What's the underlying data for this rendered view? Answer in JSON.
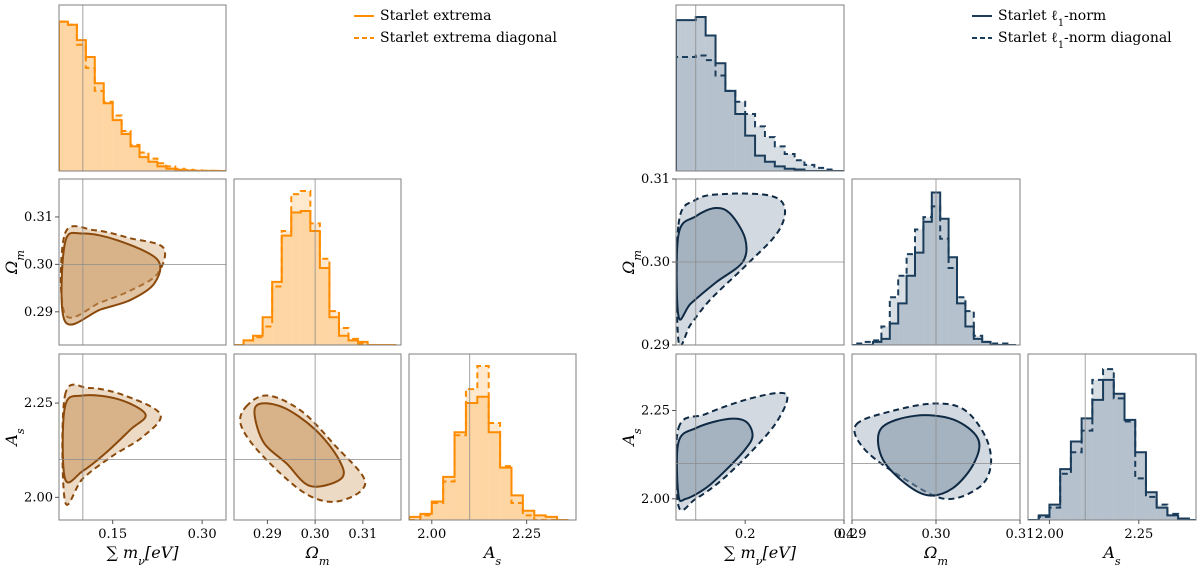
{
  "chart_data": [
    {
      "type": "corner",
      "colors": {
        "hist": "#ff8c00",
        "hist_fill": "#fdcf95",
        "contour": "#8b4a0c",
        "contour_fill": "#c8945a",
        "truth": "#8c8c8c"
      },
      "legend": {
        "placement": "top-right",
        "entries": [
          {
            "label": "Starlet extrema",
            "style": "solid"
          },
          {
            "label": "Starlet extrema diagonal",
            "style": "dashed"
          }
        ]
      },
      "parameters": [
        {
          "name": "sum_mnu",
          "label": "∑ m",
          "sub": "ν",
          "suffix": "[eV]",
          "range": [
            0.06,
            0.34
          ],
          "truth": 0.1,
          "ticks": [
            0.15,
            0.3
          ],
          "tick_labels": [
            "0.15",
            "0.30"
          ]
        },
        {
          "name": "Omega_m",
          "label": "Ω",
          "sub": "m",
          "suffix": "",
          "range": [
            0.283,
            0.318
          ],
          "truth": 0.3,
          "ticks": [
            0.29,
            0.3,
            0.31
          ],
          "tick_labels": [
            "0.29",
            "0.30",
            "0.31"
          ]
        },
        {
          "name": "A_s",
          "label": "A",
          "sub": "s",
          "suffix": "",
          "range": [
            1.94,
            2.38
          ],
          "truth": 2.1,
          "ticks": [
            2.0,
            2.25
          ],
          "tick_labels": [
            "2.00",
            "2.25"
          ]
        }
      ],
      "marginals": [
        {
          "edges": [
            0.06,
            0.075,
            0.09,
            0.105,
            0.12,
            0.135,
            0.15,
            0.165,
            0.18,
            0.195,
            0.21,
            0.225,
            0.24,
            0.255,
            0.27,
            0.285,
            0.3,
            0.315,
            0.33,
            0.345
          ],
          "solid": [
            0.97,
            0.95,
            0.85,
            0.74,
            0.57,
            0.44,
            0.33,
            0.24,
            0.16,
            0.09,
            0.06,
            0.03,
            0.015,
            0.008,
            0.004,
            0.002,
            0.001,
            0.0005,
            0.0
          ],
          "dashed": [
            0.97,
            0.95,
            0.82,
            0.67,
            0.52,
            0.45,
            0.36,
            0.26,
            0.17,
            0.12,
            0.08,
            0.05,
            0.03,
            0.015,
            0.008,
            0.004,
            0.002,
            0.001,
            0.0
          ]
        },
        {
          "edges": [
            0.283,
            0.285,
            0.287,
            0.289,
            0.291,
            0.293,
            0.295,
            0.297,
            0.299,
            0.301,
            0.303,
            0.305,
            0.307,
            0.309,
            0.311,
            0.313,
            0.315,
            0.317
          ],
          "solid": [
            0.0,
            0.03,
            0.06,
            0.18,
            0.41,
            0.71,
            0.86,
            0.87,
            0.74,
            0.5,
            0.18,
            0.06,
            0.03,
            0.02,
            0.0,
            0.0,
            0.0
          ],
          "dashed": [
            0.0,
            0.03,
            0.05,
            0.12,
            0.38,
            0.74,
            0.98,
            1.0,
            0.79,
            0.56,
            0.22,
            0.11,
            0.04,
            0.01,
            0.0,
            0.0,
            0.0
          ]
        },
        {
          "edges": [
            1.94,
            1.97,
            2.0,
            2.03,
            2.06,
            2.09,
            2.12,
            2.15,
            2.18,
            2.21,
            2.24,
            2.27,
            2.3,
            2.33,
            2.36
          ],
          "solid": [
            0.02,
            0.04,
            0.12,
            0.28,
            0.57,
            0.76,
            0.8,
            0.57,
            0.34,
            0.16,
            0.06,
            0.03,
            0.02,
            0.0
          ],
          "dashed": [
            0.0,
            0.03,
            0.11,
            0.25,
            0.55,
            0.85,
            1.0,
            0.63,
            0.35,
            0.11,
            0.03,
            0.0,
            0.0,
            0.0
          ]
        }
      ],
      "contours": [
        {
          "x": "sum_mnu",
          "y": "Omega_m",
          "solid": [
            [
              0.07,
              0.3045
            ],
            [
              0.1,
              0.3065
            ],
            [
              0.16,
              0.305
            ],
            [
              0.225,
              0.301
            ],
            [
              0.22,
              0.296
            ],
            [
              0.18,
              0.2925
            ],
            [
              0.13,
              0.2905
            ],
            [
              0.07,
              0.288
            ]
          ],
          "dashed": [
            [
              0.07,
              0.3065
            ],
            [
              0.12,
              0.3072
            ],
            [
              0.18,
              0.3055
            ],
            [
              0.235,
              0.3035
            ],
            [
              0.225,
              0.298
            ],
            [
              0.18,
              0.2945
            ],
            [
              0.13,
              0.292
            ],
            [
              0.07,
              0.2895
            ]
          ]
        },
        {
          "x": "sum_mnu",
          "y": "A_s",
          "solid": [
            [
              0.07,
              2.24
            ],
            [
              0.1,
              2.27
            ],
            [
              0.16,
              2.26
            ],
            [
              0.205,
              2.22
            ],
            [
              0.18,
              2.18
            ],
            [
              0.14,
              2.12
            ],
            [
              0.1,
              2.07
            ],
            [
              0.07,
              2.05
            ]
          ],
          "dashed": [
            [
              0.07,
              2.27
            ],
            [
              0.11,
              2.29
            ],
            [
              0.17,
              2.27
            ],
            [
              0.23,
              2.22
            ],
            [
              0.2,
              2.16
            ],
            [
              0.15,
              2.11
            ],
            [
              0.1,
              2.05
            ],
            [
              0.07,
              1.99
            ]
          ]
        },
        {
          "x": "Omega_m",
          "y": "A_s",
          "solid": [
            [
              0.2875,
              2.24
            ],
            [
              0.293,
              2.24
            ],
            [
              0.3,
              2.18
            ],
            [
              0.305,
              2.1
            ],
            [
              0.3055,
              2.05
            ],
            [
              0.299,
              2.03
            ],
            [
              0.294,
              2.09
            ],
            [
              0.289,
              2.15
            ]
          ],
          "dashed": [
            [
              0.2855,
              2.24
            ],
            [
              0.29,
              2.27
            ],
            [
              0.297,
              2.23
            ],
            [
              0.304,
              2.14
            ],
            [
              0.3105,
              2.04
            ],
            [
              0.305,
              1.99
            ],
            [
              0.298,
              2.01
            ],
            [
              0.289,
              2.11
            ],
            [
              0.2845,
              2.19
            ]
          ]
        }
      ]
    },
    {
      "type": "corner",
      "colors": {
        "hist": "#1b3d5c",
        "hist_fill": "#a9b7c4",
        "contour": "#0f2a44",
        "contour_fill": "#7f93a5",
        "truth": "#8c8c8c"
      },
      "legend": {
        "placement": "top-right",
        "entries": [
          {
            "label": "Starlet ℓ",
            "sub": "1",
            "suffix": "-norm",
            "style": "solid"
          },
          {
            "label": "Starlet ℓ",
            "sub": "1",
            "suffix": "-norm diagonal",
            "style": "dashed"
          }
        ]
      },
      "parameters": [
        {
          "name": "sum_mnu",
          "label": "∑ m",
          "sub": "ν",
          "suffix": "[eV]",
          "range": [
            0.06,
            0.4
          ],
          "truth": 0.1,
          "ticks": [
            0.2,
            0.4
          ],
          "tick_labels": [
            "0.2",
            "0.4"
          ]
        },
        {
          "name": "Omega_m",
          "label": "Ω",
          "sub": "m",
          "suffix": "",
          "range": [
            0.29,
            0.31
          ],
          "truth": 0.3,
          "ticks": [
            0.29,
            0.3,
            0.31
          ],
          "tick_labels": [
            "0.29",
            "0.30",
            "0.31"
          ]
        },
        {
          "name": "A_s",
          "label": "A",
          "sub": "s",
          "suffix": "",
          "range": [
            1.94,
            2.41
          ],
          "truth": 2.1,
          "ticks": [
            2.0,
            2.25
          ],
          "tick_labels": [
            "2.00",
            "2.25"
          ]
        }
      ],
      "marginals": [
        {
          "edges": [
            0.06,
            0.08,
            0.1,
            0.12,
            0.14,
            0.16,
            0.18,
            0.2,
            0.22,
            0.24,
            0.26,
            0.28,
            0.3,
            0.32,
            0.34,
            0.36,
            0.38,
            0.4
          ],
          "solid": [
            0.98,
            0.98,
            1.0,
            0.88,
            0.7,
            0.52,
            0.37,
            0.23,
            0.1,
            0.06,
            0.03,
            0.015,
            0.01,
            0.0,
            0.0,
            0.0,
            0.0
          ],
          "dashed": [
            0.74,
            0.74,
            0.75,
            0.72,
            0.62,
            0.52,
            0.45,
            0.37,
            0.29,
            0.22,
            0.16,
            0.11,
            0.07,
            0.04,
            0.02,
            0.01,
            0.0
          ]
        },
        {
          "edges": [
            0.2895,
            0.2905,
            0.2915,
            0.2925,
            0.2935,
            0.2945,
            0.2955,
            0.2965,
            0.2975,
            0.2985,
            0.2995,
            0.3005,
            0.3015,
            0.3025,
            0.3035,
            0.3045,
            0.3055,
            0.3065,
            0.3075,
            0.3085,
            0.3095
          ],
          "solid": [
            0.0,
            0.0,
            0.0,
            0.02,
            0.04,
            0.14,
            0.27,
            0.45,
            0.6,
            0.8,
            0.99,
            0.82,
            0.57,
            0.27,
            0.12,
            0.04,
            0.02,
            0.0,
            0.0,
            0.0
          ],
          "dashed": [
            0.0,
            0.01,
            0.02,
            0.03,
            0.12,
            0.31,
            0.45,
            0.59,
            0.75,
            0.83,
            0.9,
            0.69,
            0.5,
            0.31,
            0.22,
            0.06,
            0.02,
            0.01,
            0.01,
            0.0
          ]
        },
        {
          "edges": [
            1.94,
            1.97,
            2.0,
            2.03,
            2.06,
            2.09,
            2.12,
            2.15,
            2.18,
            2.21,
            2.24,
            2.27,
            2.3,
            2.33,
            2.36,
            2.39,
            2.41
          ],
          "solid": [
            0.0,
            0.03,
            0.1,
            0.33,
            0.51,
            0.66,
            0.78,
            0.91,
            0.82,
            0.65,
            0.44,
            0.18,
            0.08,
            0.03,
            0.01,
            0.0
          ],
          "dashed": [
            0.0,
            0.02,
            0.08,
            0.3,
            0.44,
            0.58,
            0.91,
            0.98,
            0.79,
            0.64,
            0.27,
            0.15,
            0.1,
            0.04,
            0.01,
            0.0
          ]
        }
      ],
      "contours": [
        {
          "x": "sum_mnu",
          "y": "Omega_m",
          "solid": [
            [
              0.065,
              0.3033
            ],
            [
              0.1,
              0.3055
            ],
            [
              0.14,
              0.3065
            ],
            [
              0.17,
              0.3058
            ],
            [
              0.2,
              0.3028
            ],
            [
              0.195,
              0.3
            ],
            [
              0.14,
              0.2975
            ],
            [
              0.09,
              0.295
            ],
            [
              0.065,
              0.2935
            ]
          ],
          "dashed": [
            [
              0.065,
              0.3045
            ],
            [
              0.1,
              0.3075
            ],
            [
              0.16,
              0.3082
            ],
            [
              0.25,
              0.308
            ],
            [
              0.28,
              0.3065
            ],
            [
              0.265,
              0.3035
            ],
            [
              0.2,
              0.2995
            ],
            [
              0.13,
              0.2955
            ],
            [
              0.09,
              0.2925
            ],
            [
              0.065,
              0.2905
            ]
          ]
        },
        {
          "x": "sum_mnu",
          "y": "A_s",
          "solid": [
            [
              0.065,
              2.16
            ],
            [
              0.1,
              2.2
            ],
            [
              0.16,
              2.225
            ],
            [
              0.2,
              2.22
            ],
            [
              0.215,
              2.18
            ],
            [
              0.2,
              2.14
            ],
            [
              0.16,
              2.08
            ],
            [
              0.12,
              2.03
            ],
            [
              0.08,
              2.0
            ],
            [
              0.065,
              2.01
            ]
          ],
          "dashed": [
            [
              0.065,
              2.2
            ],
            [
              0.12,
              2.24
            ],
            [
              0.2,
              2.28
            ],
            [
              0.27,
              2.3
            ],
            [
              0.285,
              2.28
            ],
            [
              0.26,
              2.21
            ],
            [
              0.21,
              2.13
            ],
            [
              0.15,
              2.05
            ],
            [
              0.1,
              2.0
            ],
            [
              0.065,
              1.98
            ]
          ]
        },
        {
          "x": "Omega_m",
          "y": "A_s",
          "solid": [
            [
              0.2935,
              2.2
            ],
            [
              0.2975,
              2.235
            ],
            [
              0.302,
              2.225
            ],
            [
              0.305,
              2.17
            ],
            [
              0.3045,
              2.1
            ],
            [
              0.302,
              2.03
            ],
            [
              0.299,
              2.01
            ],
            [
              0.296,
              2.05
            ],
            [
              0.2935,
              2.12
            ]
          ],
          "dashed": [
            [
              0.2905,
              2.21
            ],
            [
              0.295,
              2.25
            ],
            [
              0.3,
              2.27
            ],
            [
              0.3035,
              2.25
            ],
            [
              0.306,
              2.17
            ],
            [
              0.3065,
              2.09
            ],
            [
              0.305,
              2.03
            ],
            [
              0.301,
              2.0
            ],
            [
              0.296,
              2.06
            ],
            [
              0.2915,
              2.14
            ]
          ]
        }
      ]
    }
  ]
}
